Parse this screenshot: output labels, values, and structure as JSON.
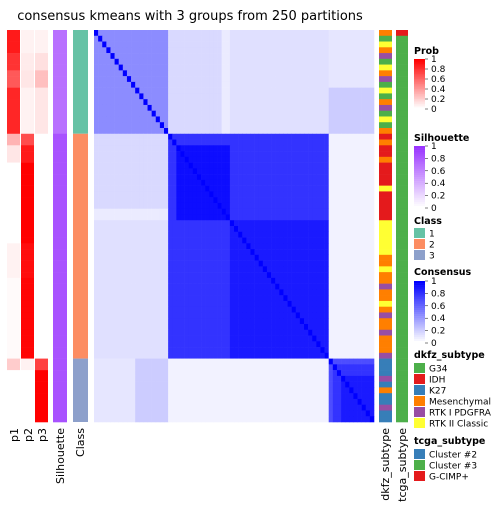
{
  "chart_data": {
    "type": "heatmap",
    "title": "consensus kmeans with 3 groups from 250 partitions",
    "row_groups": [
      {
        "group": 1,
        "n": 18
      },
      {
        "group": 2,
        "n": 39
      },
      {
        "group": 3,
        "n": 11
      }
    ],
    "annotation_columns": [
      "p1",
      "p2",
      "p3",
      "Silhouette",
      "Class"
    ],
    "right_annotation_columns": [
      "dkfz_subtype",
      "tcga_subtype"
    ],
    "prob_segments": [
      {
        "n": 4,
        "p": [
          0.9,
          0.05,
          0.05
        ]
      },
      {
        "n": 3,
        "p": [
          0.8,
          0.08,
          0.12
        ]
      },
      {
        "n": 3,
        "p": [
          0.65,
          0.1,
          0.25
        ]
      },
      {
        "n": 8,
        "p": [
          0.85,
          0.05,
          0.1
        ]
      },
      {
        "n": 2,
        "p": [
          0.3,
          0.7,
          0.0
        ]
      },
      {
        "n": 3,
        "p": [
          0.1,
          0.9,
          0.0
        ]
      },
      {
        "n": 14,
        "p": [
          0.0,
          1.0,
          0.0
        ]
      },
      {
        "n": 6,
        "p": [
          0.05,
          0.95,
          0.0
        ]
      },
      {
        "n": 14,
        "p": [
          0.02,
          0.98,
          0.0
        ]
      },
      {
        "n": 2,
        "p": [
          0.2,
          0.05,
          0.75
        ]
      },
      {
        "n": 9,
        "p": [
          0.0,
          0.0,
          1.0
        ]
      }
    ],
    "silhouette_segments": [
      {
        "n": 18,
        "v": 0.7
      },
      {
        "n": 39,
        "v": 0.85
      },
      {
        "n": 11,
        "v": 0.85
      }
    ],
    "consensus_blocks": [
      {
        "r": [
          0,
          2
        ],
        "c": [
          0,
          2
        ],
        "v": 0.85
      },
      {
        "r": [
          0,
          5
        ],
        "c": [
          0,
          5
        ],
        "v": 0.8
      },
      {
        "r": [
          5,
          10
        ],
        "c": [
          5,
          10
        ],
        "v": 0.85
      },
      {
        "r": [
          10,
          18
        ],
        "c": [
          10,
          18
        ],
        "v": 0.75
      },
      {
        "r": [
          0,
          10
        ],
        "c": [
          10,
          18
        ],
        "v": 0.55
      },
      {
        "r": [
          10,
          18
        ],
        "c": [
          0,
          10
        ],
        "v": 0.55
      },
      {
        "r": [
          0,
          18
        ],
        "c": [
          0,
          18
        ],
        "v": 0.45
      },
      {
        "r": [
          18,
          57
        ],
        "c": [
          18,
          57
        ],
        "v": 0.8
      },
      {
        "r": [
          20,
          33
        ],
        "c": [
          20,
          33
        ],
        "v": 0.95
      },
      {
        "r": [
          33,
          57
        ],
        "c": [
          33,
          57
        ],
        "v": 0.9
      },
      {
        "r": [
          57,
          68
        ],
        "c": [
          57,
          68
        ],
        "v": 0.7
      },
      {
        "r": [
          58,
          68
        ],
        "c": [
          58,
          68
        ],
        "v": 0.8
      },
      {
        "r": [
          60,
          68
        ],
        "c": [
          60,
          68
        ],
        "v": 0.9
      },
      {
        "r": [
          0,
          18
        ],
        "c": [
          18,
          31
        ],
        "v": 0.15
      },
      {
        "r": [
          18,
          31
        ],
        "c": [
          0,
          18
        ],
        "v": 0.15
      },
      {
        "r": [
          0,
          18
        ],
        "c": [
          31,
          57
        ],
        "v": 0.08
      },
      {
        "r": [
          31,
          57
        ],
        "c": [
          0,
          18
        ],
        "v": 0.08
      },
      {
        "r": [
          0,
          10
        ],
        "c": [
          57,
          68
        ],
        "v": 0.1
      },
      {
        "r": [
          57,
          68
        ],
        "c": [
          0,
          10
        ],
        "v": 0.1
      },
      {
        "r": [
          10,
          18
        ],
        "c": [
          57,
          68
        ],
        "v": 0.2
      },
      {
        "r": [
          57,
          68
        ],
        "c": [
          10,
          18
        ],
        "v": 0.2
      },
      {
        "r": [
          33,
          57
        ],
        "c": [
          0,
          18
        ],
        "v": 0.12
      },
      {
        "r": [
          0,
          18
        ],
        "c": [
          33,
          57
        ],
        "v": 0.12
      },
      {
        "r": [
          57,
          68
        ],
        "c": [
          18,
          57
        ],
        "v": 0.05
      },
      {
        "r": [
          18,
          57
        ],
        "c": [
          57,
          68
        ],
        "v": 0.05
      }
    ],
    "dkfz_sequence": [
      "Mesenchymal",
      "G34",
      "RTK II Classic",
      "Mesenchymal",
      "RTK I PDGFRA",
      "G34",
      "RTK II Classic",
      "Mesenchymal",
      "RTK I PDGFRA",
      "G34",
      "RTK II Classic",
      "G34",
      "Mesenchymal",
      "RTK I PDGFRA",
      "G34",
      "RTK II Classic",
      "G34",
      "Mesenchymal",
      "IDH",
      "Mesenchymal",
      "IDH",
      "IDH",
      "Mesenchymal",
      "IDH",
      "IDH",
      "IDH",
      "IDH",
      "RTK II Classic",
      "IDH",
      "IDH",
      "IDH",
      "IDH",
      "IDH",
      "RTK II Classic",
      "RTK II Classic",
      "RTK II Classic",
      "RTK II Classic",
      "RTK II Classic",
      "RTK II Classic",
      "Mesenchymal",
      "Mesenchymal",
      "RTK II Classic",
      "Mesenchymal",
      "Mesenchymal",
      "RTK I PDGFRA",
      "Mesenchymal",
      "Mesenchymal",
      "RTK II Classic",
      "Mesenchymal",
      "RTK I PDGFRA",
      "Mesenchymal",
      "Mesenchymal",
      "RTK I PDGFRA",
      "Mesenchymal",
      "Mesenchymal",
      "Mesenchymal",
      "RTK I PDGFRA",
      "K27",
      "K27",
      "K27",
      "RTK I PDGFRA",
      "K27",
      "Mesenchymal",
      "K27",
      "K27",
      "RTK I PDGFRA",
      "K27",
      "K27"
    ],
    "tcga_sequence": [
      "G-CIMP+",
      "Cluster #3",
      "Cluster #3",
      "Cluster #3",
      "Cluster #3",
      "Cluster #3",
      "Cluster #3",
      "Cluster #3",
      "Cluster #3",
      "Cluster #3",
      "Cluster #3",
      "Cluster #3",
      "Cluster #3",
      "Cluster #3",
      "Cluster #3",
      "Cluster #3",
      "Cluster #3",
      "Cluster #3",
      "Cluster #3",
      "Cluster #3",
      "Cluster #3",
      "Cluster #3",
      "Cluster #3",
      "Cluster #3",
      "Cluster #3",
      "Cluster #3",
      "Cluster #3",
      "Cluster #3",
      "Cluster #3",
      "Cluster #3",
      "Cluster #3",
      "Cluster #3",
      "Cluster #3",
      "Cluster #3",
      "Cluster #3",
      "Cluster #3",
      "Cluster #3",
      "Cluster #3",
      "Cluster #3",
      "Cluster #3",
      "Cluster #3",
      "Cluster #3",
      "Cluster #3",
      "Cluster #3",
      "Cluster #3",
      "Cluster #3",
      "Cluster #3",
      "Cluster #3",
      "Cluster #3",
      "Cluster #3",
      "Cluster #3",
      "Cluster #3",
      "Cluster #3",
      "Cluster #3",
      "Cluster #3",
      "Cluster #3",
      "Cluster #3",
      "Cluster #3",
      "Cluster #3",
      "Cluster #3",
      "Cluster #3",
      "Cluster #3",
      "Cluster #3",
      "Cluster #3",
      "Cluster #3",
      "Cluster #3",
      "Cluster #3",
      "Cluster #3"
    ],
    "class_colors": {
      "1": "#66C2A5",
      "2": "#FC8D62",
      "3": "#8DA0CB"
    },
    "dkfz_colors": {
      "G34": "#4DAF4A",
      "IDH": "#E41A1C",
      "K27": "#377EB8",
      "Mesenchymal": "#FF7F00",
      "RTK I PDGFRA": "#984EA3",
      "RTK II Classic": "#FFFF33"
    },
    "tcga_colors": {
      "Cluster #2": "#377EB8",
      "Cluster #3": "#4DAF4A",
      "G-CIMP+": "#E41A1C"
    },
    "legends": {
      "prob": {
        "title": "Prob",
        "ticks": [
          "1",
          "0.8",
          "0.6",
          "0.4",
          "0.2",
          "0"
        ]
      },
      "silhouette": {
        "title": "Silhouette",
        "ticks": [
          "1",
          "0.8",
          "0.6",
          "0.4",
          "0.2",
          "0"
        ]
      },
      "class": {
        "title": "Class",
        "items": [
          "1",
          "2",
          "3"
        ]
      },
      "consensus": {
        "title": "Consensus",
        "ticks": [
          "1",
          "0.8",
          "0.6",
          "0.4",
          "0.2",
          "0"
        ]
      },
      "dkfz_subtype": {
        "title": "dkfz_subtype",
        "items": [
          "G34",
          "IDH",
          "K27",
          "Mesenchymal",
          "RTK I PDGFRA",
          "RTK II Classic"
        ]
      },
      "tcga_subtype": {
        "title": "tcga_subtype",
        "items": [
          "Cluster #2",
          "Cluster #3",
          "G-CIMP+"
        ]
      }
    },
    "colors": {
      "prob_low": "#FFFFFF",
      "prob_high": "#FF0000",
      "silhouette_low": "#FFFFFF",
      "silhouette_high": "#9933FF",
      "consensus_low": "#FFFFFF",
      "consensus_high": "#0000FF"
    }
  }
}
